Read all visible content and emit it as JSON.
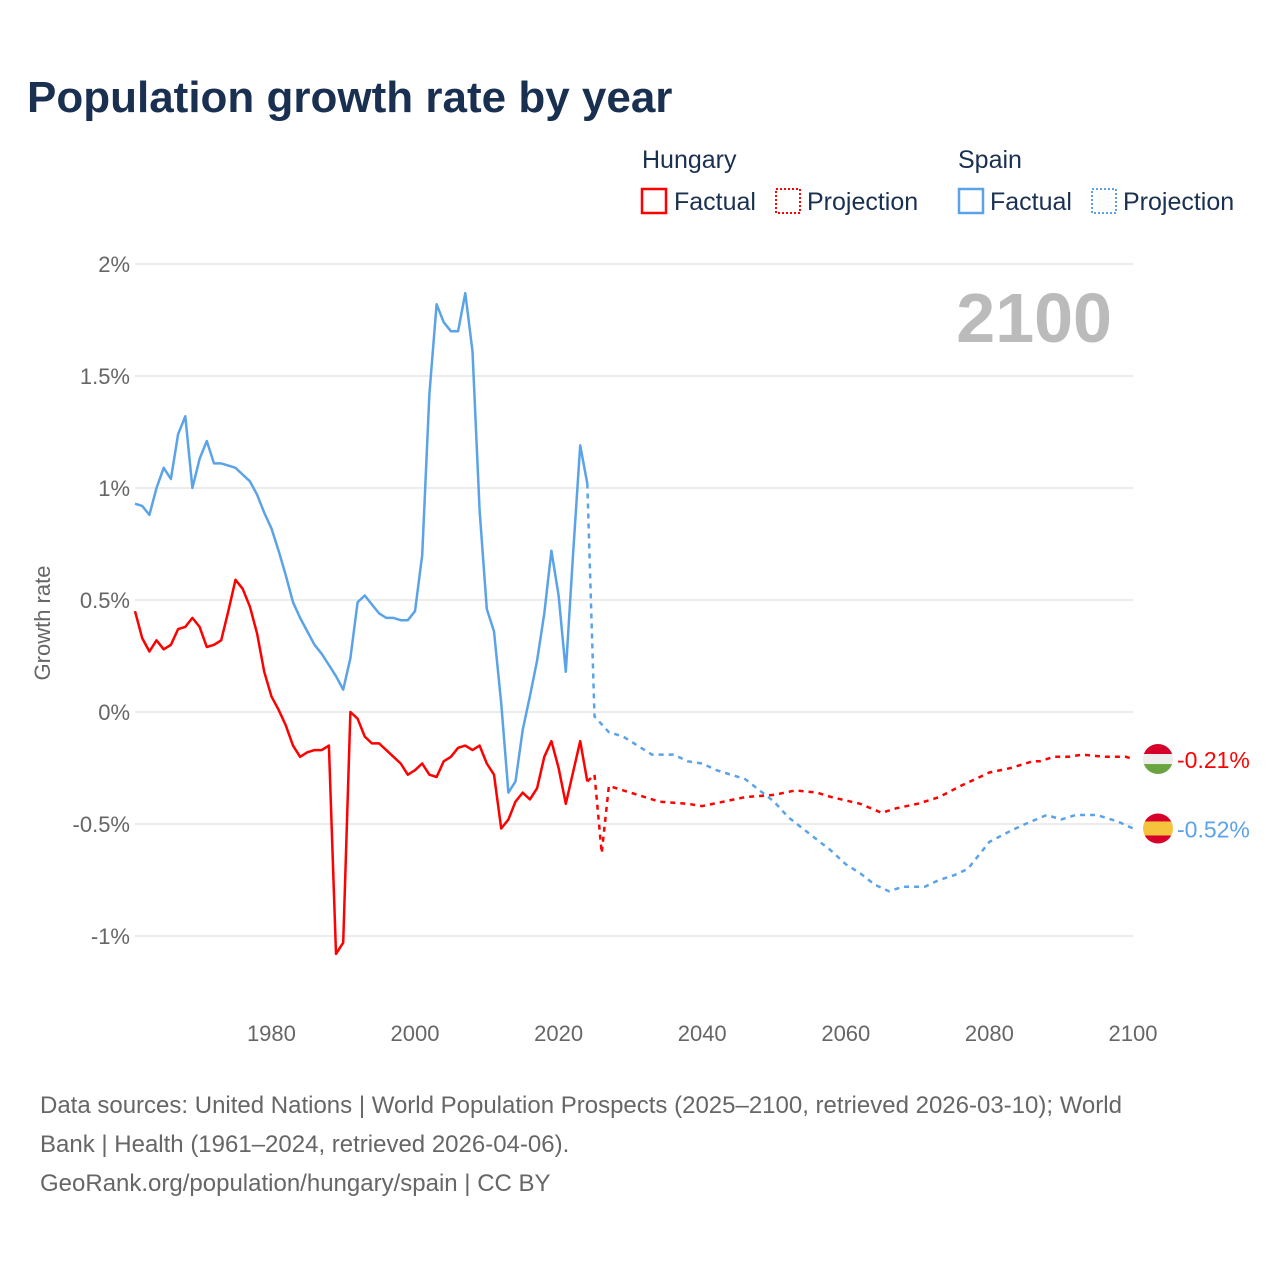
{
  "chart_data": {
    "type": "line",
    "title": "Population growth rate by year",
    "ylabel": "Growth rate",
    "xlabel": "",
    "xlim": [
      1961,
      2100
    ],
    "ylim": [
      -1.25,
      2.1
    ],
    "x_ticks": [
      1980,
      2000,
      2020,
      2040,
      2060,
      2080,
      2100
    ],
    "x_tick_labels": [
      "1980",
      "2000",
      "2020",
      "2040",
      "2060",
      "2080",
      "2100"
    ],
    "y_ticks": [
      2,
      1.5,
      1,
      0.5,
      0,
      -0.5,
      -1
    ],
    "y_tick_labels": [
      "2%",
      "1.5%",
      "1%",
      "0.5%",
      "0%",
      "-0.5%",
      "-1%"
    ],
    "grid": true,
    "current_year_label": "2100",
    "legend": {
      "placement": "top-right",
      "groups": [
        {
          "name": "Hungary",
          "factual": "Factual",
          "projection": "Projection"
        },
        {
          "name": "Spain",
          "factual": "Factual",
          "projection": "Projection"
        }
      ]
    },
    "series": [
      {
        "name": "Hungary",
        "color": "#ff0000",
        "end_label": "-0.21%",
        "flag": "hungary-flag",
        "factual": {
          "start_year": 1961,
          "values": [
            0.45,
            0.33,
            0.27,
            0.32,
            0.28,
            0.3,
            0.37,
            0.38,
            0.42,
            0.38,
            0.29,
            0.3,
            0.32,
            0.45,
            0.59,
            0.55,
            0.47,
            0.35,
            0.18,
            0.07,
            0.01,
            -0.06,
            -0.15,
            -0.2,
            -0.18,
            -0.17,
            -0.17,
            -0.15,
            -1.08,
            -1.03,
            0.0,
            -0.03,
            -0.11,
            -0.14,
            -0.14,
            -0.17,
            -0.2,
            -0.23,
            -0.28,
            -0.26,
            -0.23,
            -0.28,
            -0.29,
            -0.22,
            -0.2,
            -0.16,
            -0.15,
            -0.17,
            -0.15,
            -0.23,
            -0.28,
            -0.52,
            -0.48,
            -0.4,
            -0.36,
            -0.39,
            -0.34,
            -0.2,
            -0.13,
            -0.25,
            -0.41,
            -0.27,
            -0.13,
            -0.31
          ]
        },
        "projection": {
          "x": [
            2024,
            2025,
            2026,
            2027,
            2030,
            2034,
            2038,
            2040,
            2043,
            2046,
            2050,
            2053,
            2056,
            2058,
            2062,
            2065,
            2067,
            2070,
            2073,
            2076,
            2078,
            2080,
            2083,
            2086,
            2087,
            2089,
            2091,
            2093,
            2096,
            2099,
            2100
          ],
          "values": [
            -0.31,
            -0.28,
            -0.63,
            -0.33,
            -0.36,
            -0.4,
            -0.41,
            -0.42,
            -0.4,
            -0.38,
            -0.37,
            -0.35,
            -0.36,
            -0.38,
            -0.41,
            -0.45,
            -0.43,
            -0.41,
            -0.38,
            -0.33,
            -0.3,
            -0.27,
            -0.25,
            -0.22,
            -0.22,
            -0.2,
            -0.2,
            -0.19,
            -0.2,
            -0.2,
            -0.21
          ]
        }
      },
      {
        "name": "Spain",
        "color": "#5ba3e8",
        "end_label": "-0.52%",
        "flag": "spain-flag",
        "factual": {
          "start_year": 1961,
          "values": [
            0.93,
            0.92,
            0.88,
            1.0,
            1.09,
            1.04,
            1.24,
            1.32,
            1.0,
            1.13,
            1.21,
            1.11,
            1.11,
            1.1,
            1.09,
            1.06,
            1.03,
            0.97,
            0.89,
            0.82,
            0.72,
            0.61,
            0.49,
            0.42,
            0.36,
            0.3,
            0.26,
            0.21,
            0.16,
            0.1,
            0.24,
            0.49,
            0.52,
            0.48,
            0.44,
            0.42,
            0.42,
            0.41,
            0.41,
            0.45,
            0.7,
            1.42,
            1.82,
            1.74,
            1.7,
            1.7,
            1.87,
            1.61,
            0.9,
            0.46,
            0.36,
            0.04,
            -0.36,
            -0.31,
            -0.08,
            0.07,
            0.23,
            0.44,
            0.72,
            0.52,
            0.18,
            0.7,
            1.19,
            1.02
          ]
        },
        "projection": {
          "x": [
            2024,
            2025,
            2027,
            2029,
            2031,
            2033,
            2036,
            2038,
            2040,
            2042,
            2044,
            2046,
            2048,
            2050,
            2052,
            2054,
            2056,
            2058,
            2060,
            2062,
            2064,
            2066,
            2068,
            2071,
            2073,
            2075,
            2077,
            2080,
            2083,
            2085,
            2088,
            2090,
            2092,
            2095,
            2098,
            2100
          ],
          "values": [
            1.02,
            -0.02,
            -0.09,
            -0.11,
            -0.15,
            -0.19,
            -0.19,
            -0.22,
            -0.23,
            -0.26,
            -0.28,
            -0.3,
            -0.35,
            -0.4,
            -0.47,
            -0.52,
            -0.57,
            -0.62,
            -0.68,
            -0.72,
            -0.77,
            -0.8,
            -0.78,
            -0.78,
            -0.75,
            -0.73,
            -0.7,
            -0.58,
            -0.53,
            -0.5,
            -0.46,
            -0.48,
            -0.46,
            -0.46,
            -0.49,
            -0.52
          ]
        }
      }
    ]
  },
  "footer": {
    "source_line1": "Data sources: United Nations | World Population Prospects (2025–2100, retrieved 2026-03-10); World",
    "source_line2": "Bank | Health (1961–2024, retrieved 2026-04-06).",
    "credit": "GeoRank.org/population/hungary/spain | CC BY"
  }
}
